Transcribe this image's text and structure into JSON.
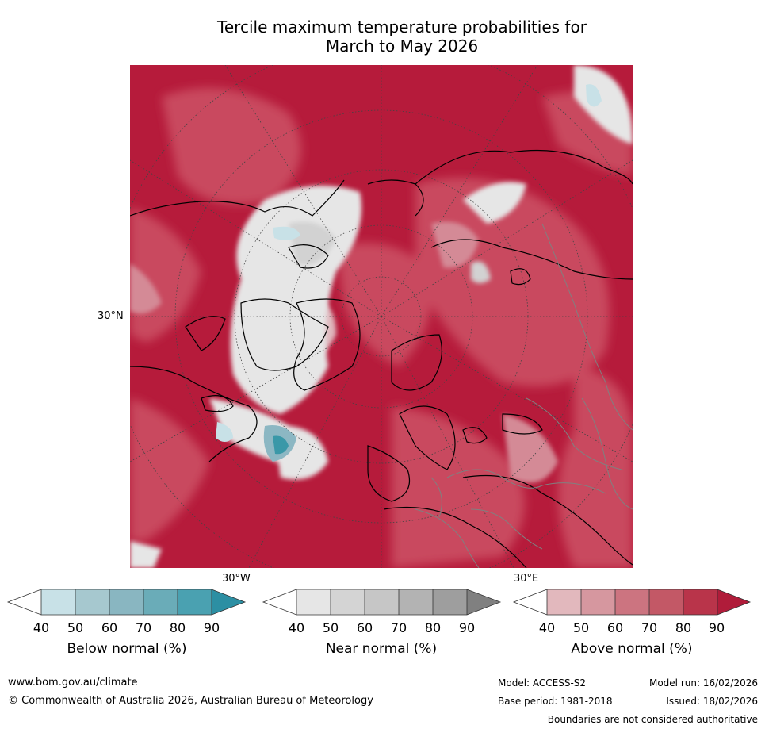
{
  "title": {
    "line1": "Tercile maximum temperature probabilities for",
    "line2": "March to May 2026"
  },
  "map": {
    "lat_label": "30°N",
    "lon_label_west": "30°W",
    "lon_label_east": "30°E",
    "colors": {
      "ocean_base": "#b61b3b",
      "land_base": "#c94a5e",
      "near_light": "#e6e6e6",
      "near_mid": "#d2d2d2",
      "below_light": "#c8e1e7",
      "below_mid": "#8cb7c3",
      "below_dark": "#3a98a8",
      "above_light": "#e0b8be",
      "above_mid": "#d48a96",
      "coast": "#000000",
      "border": "#808080",
      "grid": "#444444"
    }
  },
  "colorbars": [
    {
      "label": "Below normal (%)",
      "ticks": [
        "40",
        "50",
        "60",
        "70",
        "80",
        "90"
      ],
      "colors": [
        "#ffffff",
        "#c8e1e7",
        "#a6c8cf",
        "#89b6c1",
        "#6aacb8",
        "#4aa1b1",
        "#2c8fa3"
      ]
    },
    {
      "label": "Near normal (%)",
      "ticks": [
        "40",
        "50",
        "60",
        "70",
        "80",
        "90"
      ],
      "colors": [
        "#ffffff",
        "#e6e6e6",
        "#d4d4d4",
        "#c6c6c6",
        "#b3b3b3",
        "#9e9e9e",
        "#808080"
      ]
    },
    {
      "label": "Above normal (%)",
      "ticks": [
        "40",
        "50",
        "60",
        "70",
        "80",
        "90"
      ],
      "colors": [
        "#ffffff",
        "#e2b8bd",
        "#d6979f",
        "#cc7480",
        "#c35866",
        "#b9344a",
        "#b01c3a"
      ]
    }
  ],
  "footer": {
    "website": "www.bom.gov.au/climate",
    "copyright": "© Commonwealth of Australia 2026, Australian Bureau of Meteorology",
    "model": "Model: ACCESS-S2",
    "model_run": "Model run: 16/02/2026",
    "base_period": "Base period: 1981-2018",
    "issued": "Issued: 18/02/2026",
    "disclaimer": "Boundaries are not considered authoritative"
  }
}
